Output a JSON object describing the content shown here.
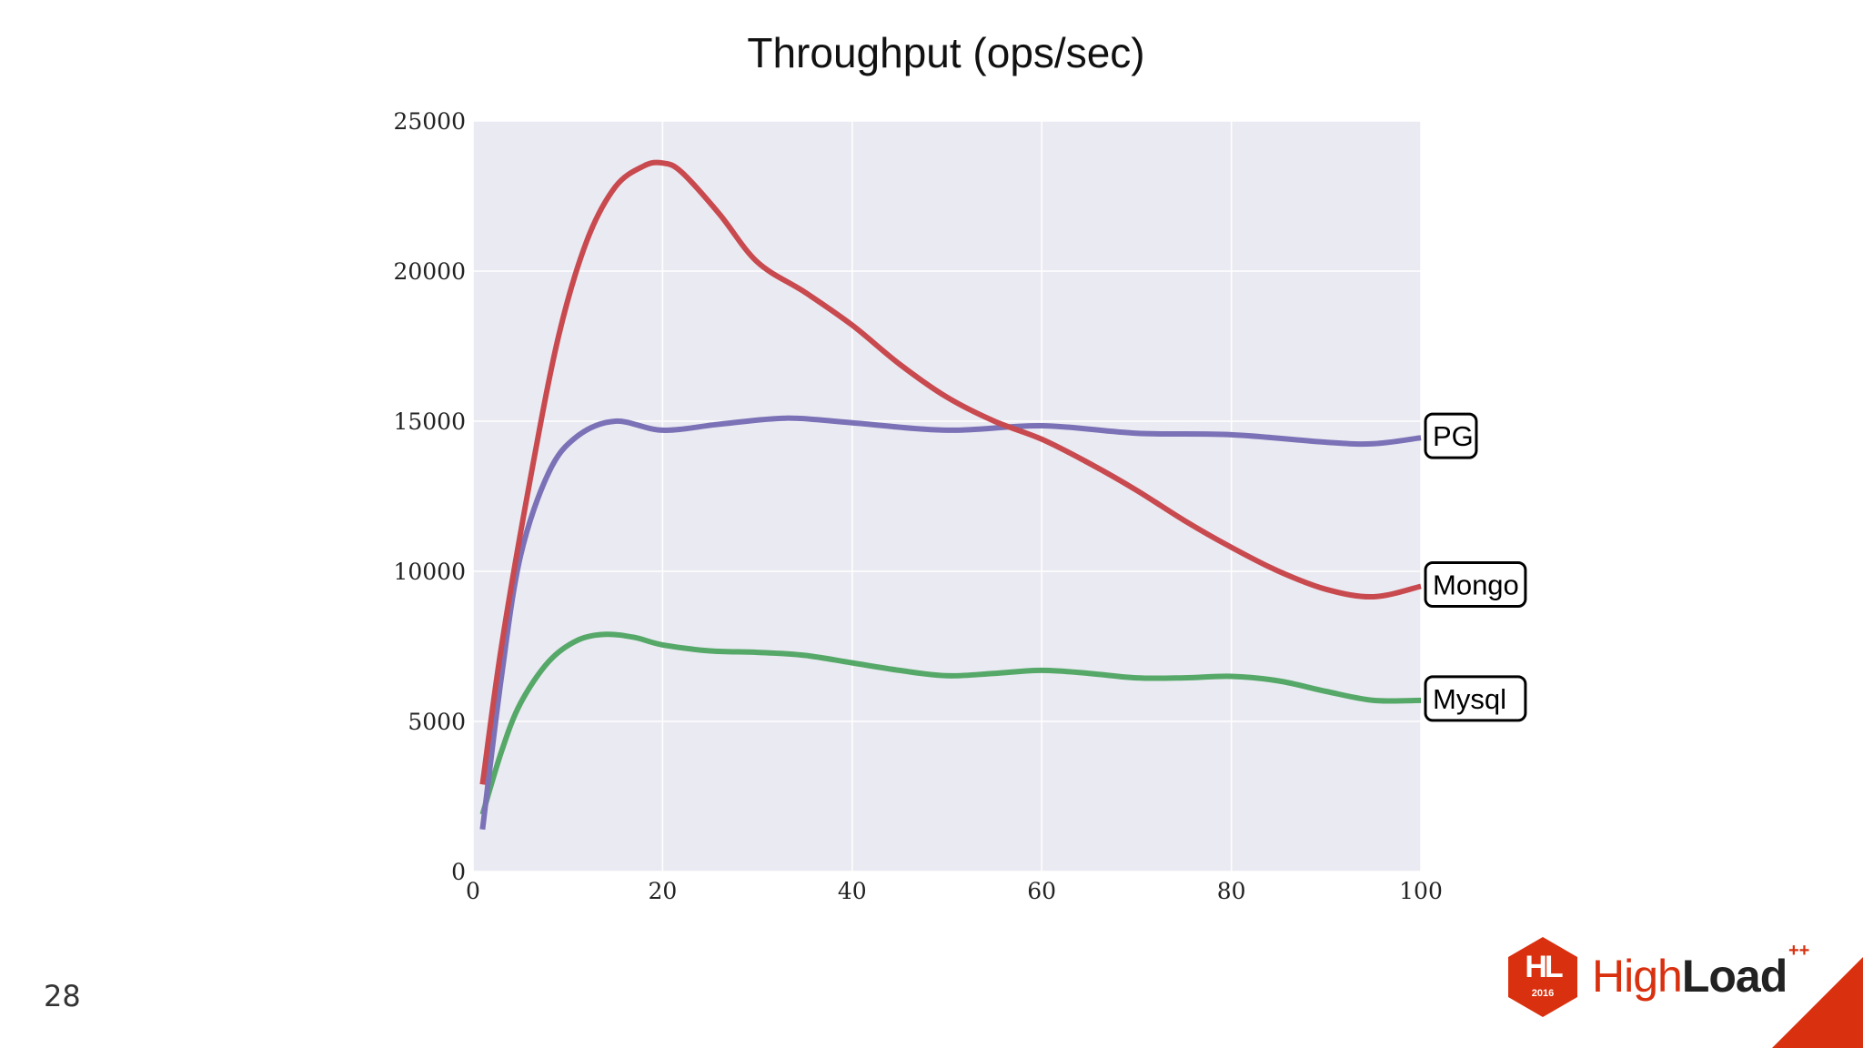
{
  "chart_data": {
    "type": "line",
    "title": "Throughput (ops/sec)",
    "xlabel": "",
    "ylabel": "",
    "xlim": [
      0,
      100
    ],
    "ylim": [
      0,
      25000
    ],
    "x_ticks": [
      "0",
      "20",
      "40",
      "60",
      "80",
      "100"
    ],
    "y_ticks": [
      "0",
      "5000",
      "10000",
      "15000",
      "20000",
      "25000"
    ],
    "grid": true,
    "legend": "inline labels at right end of each line",
    "series": [
      {
        "name": "PG",
        "color": "#7b71b7",
        "x": [
          1,
          3,
          5,
          8,
          11,
          15,
          20,
          26,
          33,
          40,
          50,
          60,
          70,
          80,
          90,
          95,
          100
        ],
        "y": [
          1400,
          6500,
          10500,
          13300,
          14500,
          15000,
          14700,
          14900,
          15100,
          14950,
          14700,
          14850,
          14600,
          14550,
          14300,
          14250,
          14450
        ]
      },
      {
        "name": "Mongo",
        "color": "#c84a4f",
        "x": [
          1,
          3,
          6,
          9,
          12,
          15,
          18,
          20,
          22,
          26,
          30,
          35,
          40,
          45,
          50,
          55,
          60,
          65,
          70,
          75,
          80,
          85,
          90,
          95,
          100
        ],
        "y": [
          2900,
          7500,
          13000,
          17800,
          21000,
          22800,
          23500,
          23600,
          23300,
          21900,
          20300,
          19300,
          18200,
          16900,
          15800,
          15000,
          14400,
          13600,
          12700,
          11700,
          10800,
          10000,
          9400,
          9150,
          9500
        ]
      },
      {
        "name": "Mysql",
        "color": "#55a868",
        "x": [
          1,
          3,
          5,
          8,
          11,
          14,
          17,
          20,
          25,
          30,
          35,
          40,
          45,
          50,
          55,
          60,
          65,
          70,
          75,
          80,
          85,
          90,
          95,
          100
        ],
        "y": [
          1900,
          4000,
          5600,
          7000,
          7700,
          7900,
          7800,
          7550,
          7350,
          7300,
          7200,
          6950,
          6700,
          6520,
          6600,
          6700,
          6600,
          6450,
          6450,
          6500,
          6350,
          6000,
          5700,
          5700
        ]
      }
    ]
  },
  "footer": {
    "slide_number": "28",
    "logo_mark": "HL",
    "logo_year": "2016",
    "logo_high": "High",
    "logo_load": "Load",
    "logo_plus": "++"
  },
  "colors": {
    "plot_background": "#eaeaf2",
    "grid": "#ffffff",
    "brand_red": "#d9300f"
  }
}
